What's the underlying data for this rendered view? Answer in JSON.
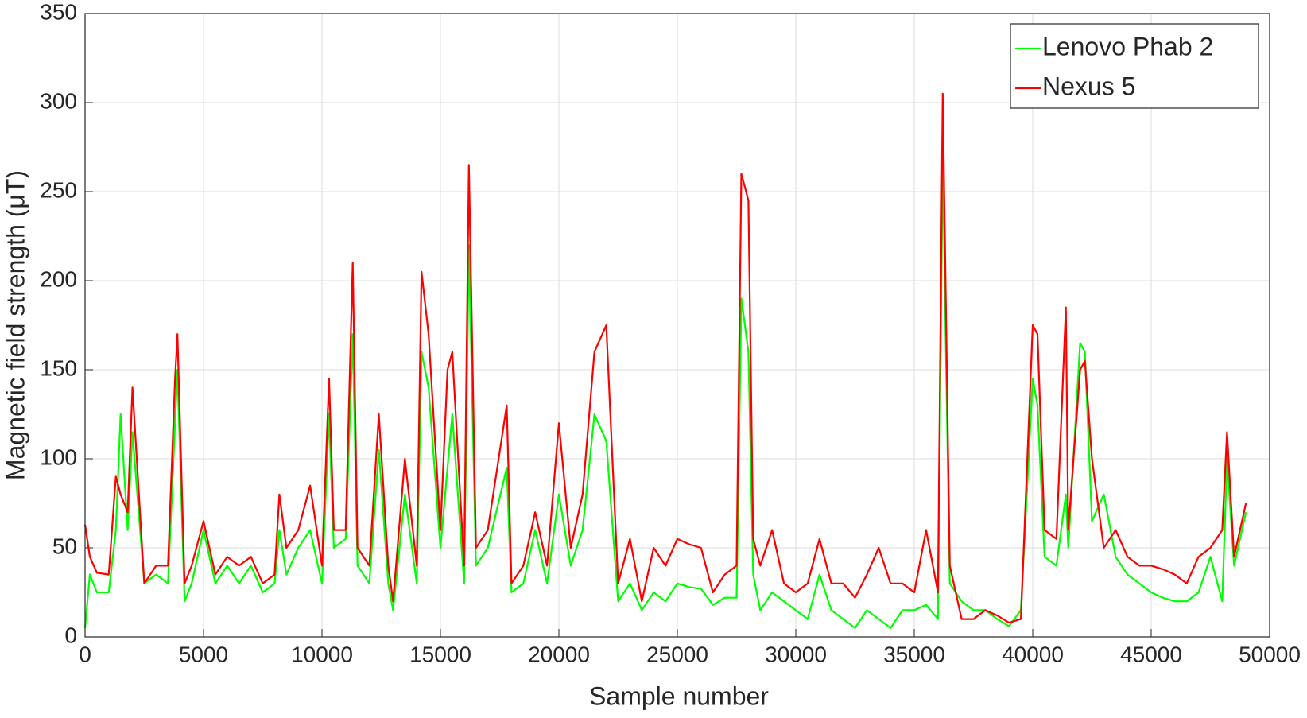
{
  "chart_data": {
    "type": "line",
    "xlabel": "Sample number",
    "ylabel": "Magnetic field strength (μT)",
    "xlim": [
      0,
      50000
    ],
    "ylim": [
      0,
      350
    ],
    "xticks": [
      0,
      5000,
      10000,
      15000,
      20000,
      25000,
      30000,
      35000,
      40000,
      45000,
      50000
    ],
    "yticks": [
      0,
      50,
      100,
      150,
      200,
      250,
      300,
      350
    ],
    "grid": true,
    "legend": "top-right",
    "x": [
      0,
      200,
      500,
      1000,
      1300,
      1500,
      1800,
      2000,
      2500,
      3000,
      3500,
      3800,
      3900,
      4200,
      4500,
      5000,
      5500,
      6000,
      6500,
      7000,
      7500,
      8000,
      8200,
      8500,
      9000,
      9500,
      10000,
      10300,
      10500,
      11000,
      11300,
      11500,
      12000,
      12400,
      12800,
      13000,
      13500,
      14000,
      14200,
      14500,
      15000,
      15300,
      15500,
      16000,
      16200,
      16500,
      17000,
      17800,
      18000,
      18500,
      19000,
      19500,
      20000,
      20500,
      21000,
      21500,
      22000,
      22500,
      23000,
      23500,
      24000,
      24500,
      25000,
      25500,
      26000,
      26500,
      27000,
      27500,
      27700,
      28000,
      28200,
      28500,
      29000,
      29500,
      30000,
      30500,
      31000,
      31500,
      32000,
      32500,
      33000,
      33500,
      34000,
      34500,
      35000,
      35500,
      36000,
      36200,
      36500,
      37000,
      37500,
      38000,
      38500,
      39000,
      39500,
      40000,
      40200,
      40500,
      41000,
      41400,
      41500,
      42000,
      42200,
      42500,
      43000,
      43500,
      44000,
      44500,
      45000,
      45500,
      46000,
      46500,
      47000,
      47500,
      48000,
      48200,
      48500,
      49000
    ],
    "series": [
      {
        "name": "Lenovo Phab 2",
        "color": "#00ff00",
        "values": [
          5,
          35,
          25,
          25,
          60,
          125,
          60,
          115,
          30,
          35,
          30,
          120,
          150,
          20,
          30,
          60,
          30,
          40,
          30,
          40,
          25,
          30,
          60,
          35,
          50,
          60,
          30,
          125,
          50,
          55,
          170,
          40,
          30,
          105,
          30,
          15,
          80,
          30,
          160,
          140,
          50,
          95,
          125,
          30,
          220,
          40,
          50,
          95,
          25,
          30,
          60,
          30,
          80,
          40,
          60,
          125,
          110,
          20,
          30,
          15,
          25,
          20,
          30,
          28,
          27,
          18,
          22,
          22,
          190,
          160,
          35,
          15,
          25,
          20,
          15,
          10,
          35,
          15,
          10,
          5,
          15,
          10,
          5,
          15,
          15,
          18,
          10,
          270,
          30,
          20,
          15,
          15,
          10,
          6,
          15,
          145,
          130,
          45,
          40,
          80,
          50,
          165,
          160,
          65,
          80,
          45,
          35,
          30,
          25,
          22,
          20,
          20,
          25,
          45,
          20,
          100,
          40,
          70
        ]
      },
      {
        "name": "Nexus 5",
        "color": "#ff0000",
        "values": [
          63,
          45,
          36,
          35,
          90,
          80,
          70,
          140,
          30,
          40,
          40,
          145,
          170,
          30,
          40,
          65,
          35,
          45,
          40,
          45,
          30,
          35,
          80,
          50,
          60,
          85,
          40,
          145,
          60,
          60,
          210,
          50,
          40,
          125,
          40,
          20,
          100,
          40,
          205,
          170,
          60,
          150,
          160,
          40,
          265,
          50,
          60,
          130,
          30,
          40,
          70,
          40,
          120,
          50,
          80,
          160,
          175,
          30,
          55,
          20,
          50,
          40,
          55,
          52,
          50,
          25,
          35,
          40,
          260,
          245,
          55,
          40,
          60,
          30,
          25,
          30,
          55,
          30,
          30,
          22,
          35,
          50,
          30,
          30,
          25,
          60,
          25,
          305,
          40,
          10,
          10,
          15,
          12,
          8,
          10,
          175,
          170,
          60,
          55,
          185,
          60,
          150,
          155,
          100,
          50,
          60,
          45,
          40,
          40,
          38,
          35,
          30,
          45,
          50,
          60,
          115,
          45,
          75
        ]
      }
    ]
  }
}
